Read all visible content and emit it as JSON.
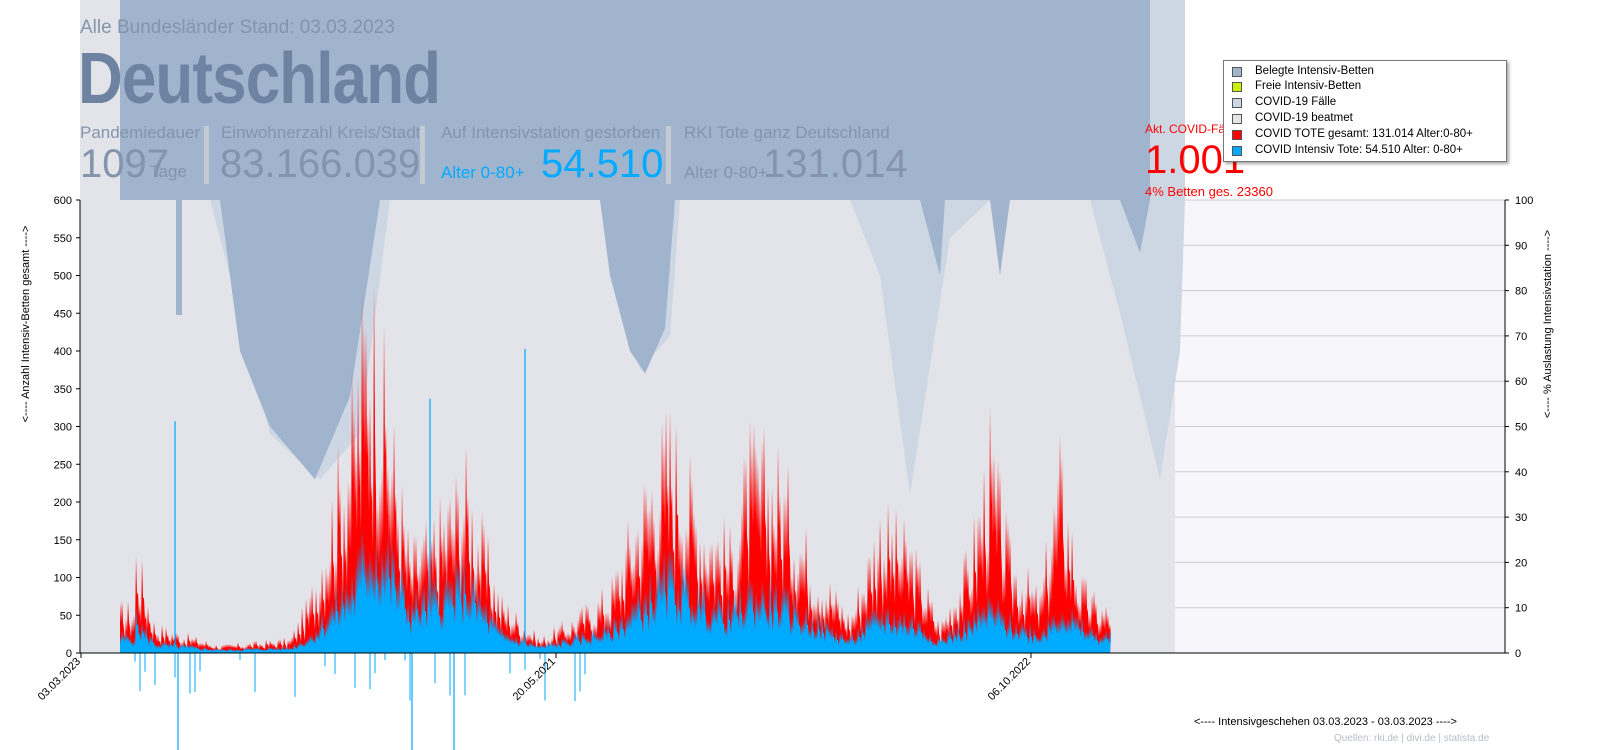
{
  "header": {
    "subtitle": "Alle Bundesländer Stand: 03.03.2023",
    "title": "Deutschland",
    "pandemic_label": "Pandemiedauer",
    "pandemic_value": "1097",
    "pandemic_unit": "Tage",
    "population_label": "Einwohnerzahl Kreis/Stadt",
    "population_value": "83.166.039",
    "icu_deaths_label": "Auf Intensivstation gestorben",
    "icu_deaths_age": "Alter 0-80+",
    "icu_deaths_value": "54.510",
    "rki_deaths_label": "RKI Tote ganz Deutschland",
    "rki_deaths_age": "Alter 0-80+",
    "rki_deaths_value": "131.014",
    "current_cases_label": "Akt. COVID-Fälle",
    "current_cases_value": "1.001",
    "current_cases_sub": "4% Betten ges. 23360"
  },
  "legend": [
    {
      "label": "Belegte Intensiv-Betten",
      "color": "#a0b4ce"
    },
    {
      "label": "Freie Intensiv-Betten",
      "color": "#c8f000"
    },
    {
      "label": "COVID-19 Fälle",
      "color": "#cdd7e4"
    },
    {
      "label": "COVID-19 beatmet",
      "color": "#e3e4e9"
    },
    {
      "label": "COVID TOTE gesamt: 131.014 Alter:0-80+",
      "color": "#ff0000"
    },
    {
      "label": "COVID Intensiv Tote: 54.510 Alter: 0-80+",
      "color": "#00aaff"
    }
  ],
  "axis_labels": {
    "y_left": "<---- Anzahl Intensiv-Betten gesamt ---->",
    "y_right": "<---- % Auslastung Intensivstation ---->",
    "x": "<---- Intensivgeschehen 03.03.2023 - 03.03.2023 ---->"
  },
  "sources": "Quellen: rki.de | divi.de | statista.de",
  "chart_data": {
    "type": "bar",
    "x_tick_labels": [
      "03.03.2023",
      "20.05.2021",
      "06.10.2022"
    ],
    "y_left_ticks": [
      0,
      50,
      100,
      150,
      200,
      250,
      300,
      350,
      400,
      450,
      500,
      550,
      600
    ],
    "y_right_ticks": [
      0,
      10,
      20,
      30,
      40,
      50,
      60,
      70,
      80,
      90,
      100
    ],
    "y_left_range": [
      0,
      600
    ],
    "y_right_range": [
      0,
      100
    ],
    "days": 1097,
    "colors": {
      "plot_bg": "#e3e4e9",
      "covid_cases": "#cdd7e4",
      "occupied": "#a0b4ce",
      "deaths_total": "#ff0000",
      "icu_deaths": "#00aaff",
      "free_beds": "#c8f000"
    },
    "series": [
      {
        "name": "COVID TOTE gesamt: 131.014 Alter:0-80+",
        "peaks": [
          [
            15,
            120
          ],
          [
            35,
            30
          ],
          [
            100,
            8
          ],
          [
            170,
            15
          ],
          [
            190,
            60
          ],
          [
            235,
            280
          ],
          [
            248,
            420
          ],
          [
            270,
            260
          ],
          [
            290,
            110
          ],
          [
            320,
            150
          ],
          [
            345,
            200
          ],
          [
            380,
            60
          ],
          [
            420,
            15
          ],
          [
            450,
            35
          ],
          [
            490,
            70
          ],
          [
            530,
            200
          ],
          [
            550,
            250
          ],
          [
            580,
            160
          ],
          [
            610,
            120
          ],
          [
            630,
            220
          ],
          [
            660,
            200
          ],
          [
            690,
            110
          ],
          [
            730,
            40
          ],
          [
            760,
            150
          ],
          [
            790,
            120
          ],
          [
            820,
            30
          ],
          [
            850,
            110
          ],
          [
            870,
            230
          ],
          [
            890,
            110
          ],
          [
            920,
            60
          ],
          [
            940,
            210
          ],
          [
            960,
            80
          ],
          [
            980,
            50
          ]
        ]
      },
      {
        "name": "COVID Intensiv Tote: 54.510 Alter: 0-80+",
        "peaks": [
          [
            15,
            50
          ],
          [
            35,
            15
          ],
          [
            100,
            5
          ],
          [
            170,
            8
          ],
          [
            190,
            25
          ],
          [
            235,
            110
          ],
          [
            248,
            170
          ],
          [
            270,
            140
          ],
          [
            290,
            70
          ],
          [
            320,
            90
          ],
          [
            345,
            110
          ],
          [
            380,
            30
          ],
          [
            420,
            10
          ],
          [
            450,
            20
          ],
          [
            490,
            35
          ],
          [
            530,
            90
          ],
          [
            550,
            120
          ],
          [
            580,
            80
          ],
          [
            610,
            60
          ],
          [
            630,
            90
          ],
          [
            660,
            80
          ],
          [
            690,
            50
          ],
          [
            730,
            20
          ],
          [
            760,
            60
          ],
          [
            790,
            50
          ],
          [
            820,
            20
          ],
          [
            850,
            45
          ],
          [
            870,
            70
          ],
          [
            890,
            45
          ],
          [
            920,
            30
          ],
          [
            940,
            70
          ],
          [
            960,
            40
          ],
          [
            980,
            25
          ]
        ]
      },
      {
        "name": "COVID-19 Fälle",
        "profile": [
          [
            0,
            600
          ],
          [
            90,
            600
          ],
          [
            110,
            500
          ],
          [
            150,
            290
          ],
          [
            200,
            230
          ],
          [
            240,
            290
          ],
          [
            270,
            600
          ],
          [
            480,
            600
          ],
          [
            500,
            520
          ],
          [
            520,
            375
          ],
          [
            550,
            420
          ],
          [
            560,
            600
          ],
          [
            730,
            600
          ],
          [
            760,
            500
          ],
          [
            790,
            210
          ],
          [
            830,
            550
          ],
          [
            870,
            600
          ],
          [
            970,
            600
          ],
          [
            1000,
            450
          ],
          [
            1040,
            230
          ],
          [
            1060,
            400
          ],
          [
            1065,
            600
          ]
        ]
      },
      {
        "name": "Belegte Intensiv-Betten",
        "profile": [
          [
            0,
            600
          ],
          [
            100,
            600
          ],
          [
            120,
            400
          ],
          [
            150,
            300
          ],
          [
            195,
            230
          ],
          [
            230,
            340
          ],
          [
            260,
            600
          ],
          [
            480,
            600
          ],
          [
            490,
            500
          ],
          [
            510,
            400
          ],
          [
            525,
            370
          ],
          [
            545,
            430
          ],
          [
            555,
            600
          ],
          [
            800,
            600
          ],
          [
            820,
            500
          ],
          [
            825,
            600
          ],
          [
            870,
            600
          ],
          [
            880,
            500
          ],
          [
            890,
            600
          ],
          [
            1000,
            600
          ],
          [
            1020,
            530
          ],
          [
            1030,
            600
          ]
        ]
      }
    ],
    "annotations": [
      {
        "type": "spike",
        "series": "COVID Intensiv Tote: 54.510 Alter: 0-80+",
        "day": 55,
        "value": 307
      },
      {
        "type": "spike",
        "series": "COVID Intensiv Tote: 54.510 Alter: 0-80+",
        "day": 310,
        "value": 337
      },
      {
        "type": "spike",
        "series": "COVID Intensiv Tote: 54.510 Alter: 0-80+",
        "day": 405,
        "value": 403
      }
    ]
  }
}
